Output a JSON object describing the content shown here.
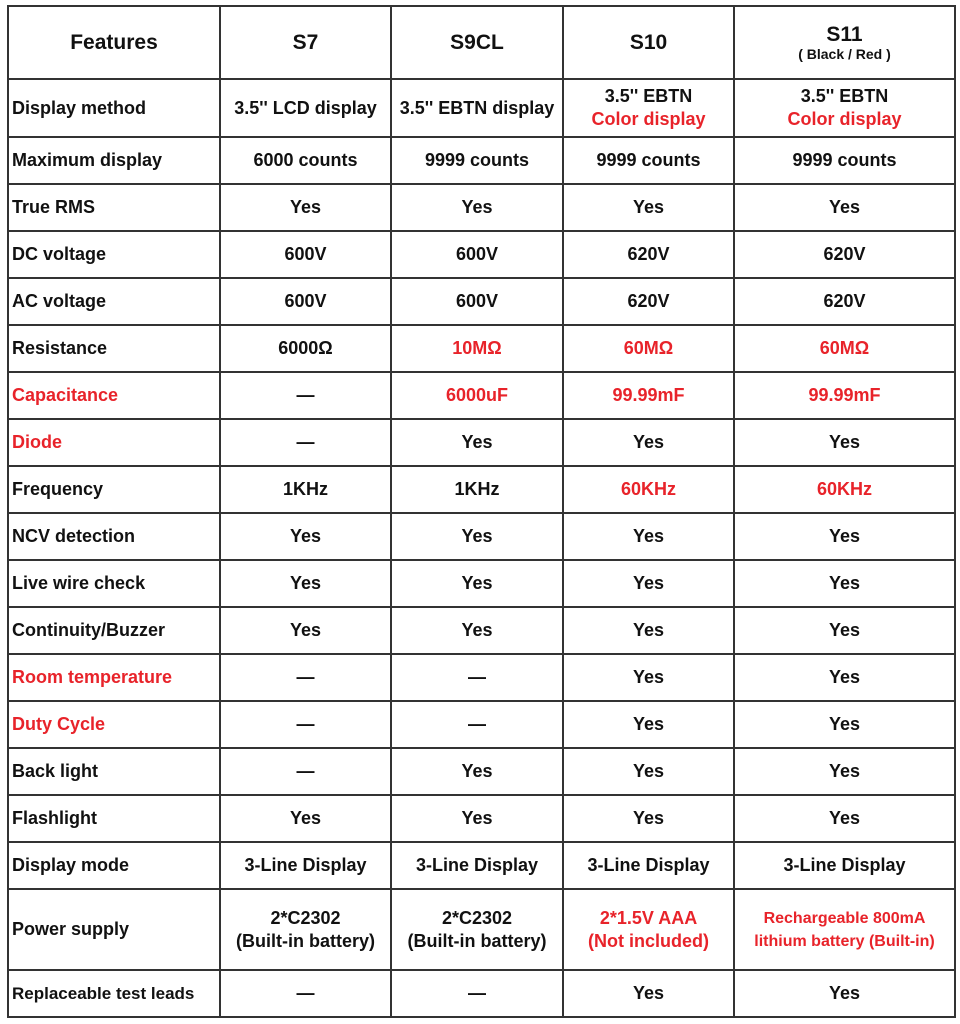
{
  "colors": {
    "text": "#111111",
    "highlight": "#e8232a",
    "border": "#333333"
  },
  "header": {
    "features": "Features",
    "models": [
      {
        "name": "S7",
        "sub": ""
      },
      {
        "name": "S9CL",
        "sub": ""
      },
      {
        "name": "S10",
        "sub": ""
      },
      {
        "name": "S11",
        "sub": "( Black / Red )"
      }
    ]
  },
  "rows": [
    {
      "label": "Display method",
      "red": false,
      "cells": [
        {
          "text": "3.5'' LCD display",
          "red": false
        },
        {
          "text": "3.5'' EBTN display",
          "red": false
        },
        {
          "lines": [
            {
              "text": "3.5'' EBTN",
              "red": false
            },
            {
              "text": "Color display",
              "red": true
            }
          ]
        },
        {
          "lines": [
            {
              "text": "3.5'' EBTN",
              "red": false
            },
            {
              "text": "Color display",
              "red": true
            }
          ]
        }
      ]
    },
    {
      "label": "Maximum display",
      "red": false,
      "cells": [
        {
          "text": "6000 counts",
          "red": false
        },
        {
          "text": "9999 counts",
          "red": false
        },
        {
          "text": "9999 counts",
          "red": false
        },
        {
          "text": "9999 counts",
          "red": false
        }
      ]
    },
    {
      "label": "True RMS",
      "red": false,
      "cells": [
        {
          "text": "Yes",
          "red": false
        },
        {
          "text": "Yes",
          "red": false
        },
        {
          "text": "Yes",
          "red": false
        },
        {
          "text": "Yes",
          "red": false
        }
      ]
    },
    {
      "label": "DC voltage",
      "red": false,
      "cells": [
        {
          "text": "600V",
          "red": false
        },
        {
          "text": "600V",
          "red": false
        },
        {
          "text": "620V",
          "red": false
        },
        {
          "text": "620V",
          "red": false
        }
      ]
    },
    {
      "label": "AC voltage",
      "red": false,
      "cells": [
        {
          "text": "600V",
          "red": false
        },
        {
          "text": "600V",
          "red": false
        },
        {
          "text": "620V",
          "red": false
        },
        {
          "text": "620V",
          "red": false
        }
      ]
    },
    {
      "label": "Resistance",
      "red": false,
      "cells": [
        {
          "text": "6000Ω",
          "red": false
        },
        {
          "text": "10MΩ",
          "red": true
        },
        {
          "text": "60MΩ",
          "red": true
        },
        {
          "text": "60MΩ",
          "red": true
        }
      ]
    },
    {
      "label": "Capacitance",
      "red": true,
      "cells": [
        {
          "text": "—",
          "red": false
        },
        {
          "text": "6000uF",
          "red": true
        },
        {
          "text": "99.99mF",
          "red": true
        },
        {
          "text": "99.99mF",
          "red": true
        }
      ]
    },
    {
      "label": "Diode",
      "red": true,
      "cells": [
        {
          "text": "—",
          "red": false
        },
        {
          "text": "Yes",
          "red": false
        },
        {
          "text": "Yes",
          "red": false
        },
        {
          "text": "Yes",
          "red": false
        }
      ]
    },
    {
      "label": "Frequency",
      "red": false,
      "cells": [
        {
          "text": "1KHz",
          "red": false
        },
        {
          "text": "1KHz",
          "red": false
        },
        {
          "text": "60KHz",
          "red": true
        },
        {
          "text": "60KHz",
          "red": true
        }
      ]
    },
    {
      "label": "NCV detection",
      "red": false,
      "cells": [
        {
          "text": "Yes",
          "red": false
        },
        {
          "text": "Yes",
          "red": false
        },
        {
          "text": "Yes",
          "red": false
        },
        {
          "text": "Yes",
          "red": false
        }
      ]
    },
    {
      "label": "Live wire check",
      "red": false,
      "cells": [
        {
          "text": "Yes",
          "red": false
        },
        {
          "text": "Yes",
          "red": false
        },
        {
          "text": "Yes",
          "red": false
        },
        {
          "text": "Yes",
          "red": false
        }
      ]
    },
    {
      "label": "Continuity/Buzzer",
      "red": false,
      "cells": [
        {
          "text": "Yes",
          "red": false
        },
        {
          "text": "Yes",
          "red": false
        },
        {
          "text": "Yes",
          "red": false
        },
        {
          "text": "Yes",
          "red": false
        }
      ]
    },
    {
      "label": "Room temperature",
      "red": true,
      "cells": [
        {
          "text": "—",
          "red": false
        },
        {
          "text": "—",
          "red": false
        },
        {
          "text": "Yes",
          "red": false
        },
        {
          "text": "Yes",
          "red": false
        }
      ]
    },
    {
      "label": "Duty Cycle",
      "red": true,
      "cells": [
        {
          "text": "—",
          "red": false
        },
        {
          "text": "—",
          "red": false
        },
        {
          "text": "Yes",
          "red": false
        },
        {
          "text": "Yes",
          "red": false
        }
      ]
    },
    {
      "label": "Back light",
      "red": false,
      "cells": [
        {
          "text": "—",
          "red": false
        },
        {
          "text": "Yes",
          "red": false
        },
        {
          "text": "Yes",
          "red": false
        },
        {
          "text": "Yes",
          "red": false
        }
      ]
    },
    {
      "label": "Flashlight",
      "red": false,
      "cells": [
        {
          "text": "Yes",
          "red": false
        },
        {
          "text": "Yes",
          "red": false
        },
        {
          "text": "Yes",
          "red": false
        },
        {
          "text": "Yes",
          "red": false
        }
      ]
    },
    {
      "label": "Display mode",
      "red": false,
      "cells": [
        {
          "text": "3-Line Display",
          "red": false
        },
        {
          "text": "3-Line Display",
          "red": false
        },
        {
          "text": "3-Line Display",
          "red": false
        },
        {
          "text": "3-Line Display",
          "red": false
        }
      ]
    },
    {
      "label": "Power supply",
      "red": false,
      "cells": [
        {
          "text": "2*C2302\n(Built-in battery)",
          "red": false
        },
        {
          "text": "2*C2302\n(Built-in battery)",
          "red": false
        },
        {
          "text": "2*1.5V AAA\n(Not included)",
          "red": true
        },
        {
          "text": "Rechargeable 800mA\nlithium battery (Built-in)",
          "red": true,
          "small": true
        }
      ]
    },
    {
      "label": "Replaceable test leads",
      "red": false,
      "small": true,
      "cells": [
        {
          "text": "—",
          "red": false
        },
        {
          "text": "—",
          "red": false
        },
        {
          "text": "Yes",
          "red": false
        },
        {
          "text": "Yes",
          "red": false
        }
      ]
    }
  ]
}
